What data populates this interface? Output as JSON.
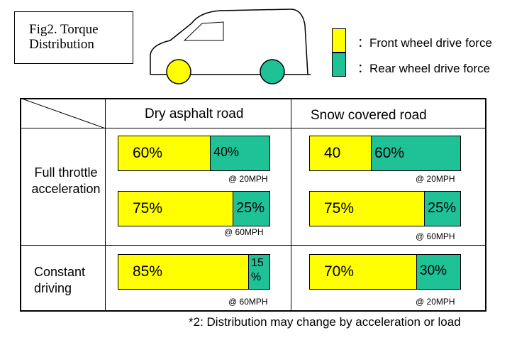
{
  "figure_title": {
    "line1": "Fig2. Torque",
    "line2": "Distribution"
  },
  "legend": [
    {
      "label": "：Front wheel drive force",
      "color": "#ffff00"
    },
    {
      "label": "：Rear wheel drive force",
      "color": "#1fc297"
    }
  ],
  "table": {
    "columns": [
      "Dry asphalt road",
      "Snow covered road"
    ],
    "rows": [
      {
        "label_line1": "Full throttle",
        "label_line2": "acceleration"
      },
      {
        "label_line1": "Constant",
        "label_line2": "driving"
      }
    ]
  },
  "chart_data": {
    "type": "bar",
    "title": "Fig2. Torque Distribution",
    "series": [
      {
        "name": "Front wheel drive force",
        "color": "#ffff00"
      },
      {
        "name": "Rear wheel drive force",
        "color": "#1fc297"
      }
    ],
    "bars": [
      {
        "road": "Dry asphalt road",
        "condition": "Full throttle acceleration",
        "front": 60,
        "rear": 40,
        "front_label": "60%",
        "rear_label": "40%",
        "speed": "@ 20MPH"
      },
      {
        "road": "Dry asphalt road",
        "condition": "Full throttle acceleration",
        "front": 75,
        "rear": 25,
        "front_label": "75%",
        "rear_label": "25%",
        "speed": "@ 60MPH"
      },
      {
        "road": "Dry asphalt road",
        "condition": "Constant driving",
        "front": 85,
        "rear": 15,
        "front_label": "85%",
        "rear_label": "15 %",
        "speed": "@ 60MPH"
      },
      {
        "road": "Snow covered road",
        "condition": "Full throttle acceleration",
        "front": 40,
        "rear": 60,
        "front_label": "40",
        "rear_label": "60%",
        "speed": "@ 20MPH"
      },
      {
        "road": "Snow covered road",
        "condition": "Full throttle acceleration",
        "front": 75,
        "rear": 25,
        "front_label": "75%",
        "rear_label": "25%",
        "speed": "@ 60MPH"
      },
      {
        "road": "Snow covered road",
        "condition": "Constant driving",
        "front": 70,
        "rear": 30,
        "front_label": "70%",
        "rear_label": "30%",
        "speed": "@ 20MPH"
      }
    ]
  },
  "footnote": "*2: Distribution may change by acceleration or load"
}
